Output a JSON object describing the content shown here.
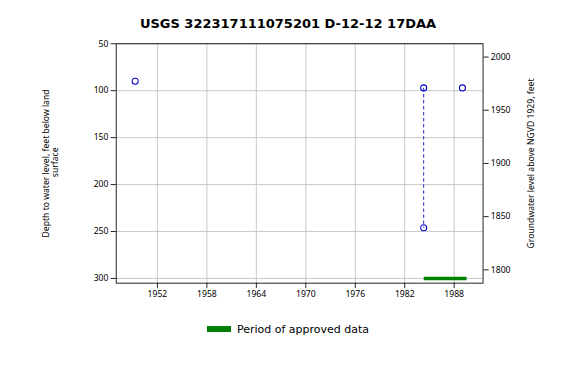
{
  "chart_data": {
    "type": "scatter",
    "title": "USGS 322317111075201 D-12-12 17DAA",
    "ylabel": "Depth to water level, feet below land\n surface",
    "y2label": "Groundwater level above NGVD 1929, feet",
    "xlim": [
      1947.0,
      1991.5
    ],
    "xticks": [
      1952,
      1958,
      1964,
      1970,
      1976,
      1982,
      1988
    ],
    "ylim": [
      305,
      50
    ],
    "yticks": [
      50,
      100,
      150,
      200,
      250,
      300
    ],
    "y2lim": [
      1787.5,
      2012.5
    ],
    "y2ticks": [
      1800,
      1850,
      1900,
      1950,
      2000
    ],
    "grid": true,
    "legend": "lower center",
    "series": [
      {
        "type": "scatter",
        "marker": "circle",
        "color": "#0000cc",
        "x": [
          1949.3,
          1984.3,
          1984.3,
          1989.0
        ],
        "values": [
          90,
          97,
          246,
          97
        ]
      },
      {
        "type": "line",
        "line_style": "dashed",
        "color": "#0000cc",
        "x": [
          1984.3,
          1984.3
        ],
        "values": [
          97,
          246
        ]
      },
      {
        "type": "line",
        "name": "Period of approved data",
        "line_style": "solid",
        "color": "#008000",
        "x": [
          1984.3,
          1989.5
        ],
        "values": [
          300,
          300
        ]
      }
    ]
  }
}
